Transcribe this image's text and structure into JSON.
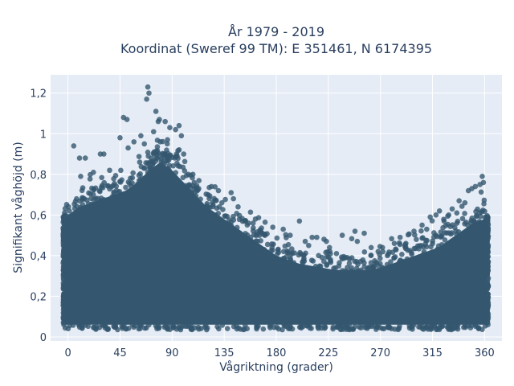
{
  "chart_data": {
    "type": "scatter",
    "title_lines": [
      "År 1979 - 2019",
      "Koordinat (Sweref 99 TM): E 351461, N 6174395"
    ],
    "xlabel": "Vågriktning (grader)",
    "ylabel": "Signifikant våghöjd (m)",
    "xlim": [
      -15,
      375
    ],
    "ylim": [
      -0.02,
      1.29
    ],
    "x_ticks": [
      0,
      45,
      90,
      135,
      180,
      225,
      270,
      315,
      360
    ],
    "x_tick_labels": [
      "0",
      "45",
      "90",
      "135",
      "180",
      "225",
      "270",
      "315",
      "360"
    ],
    "y_ticks": [
      0,
      0.2,
      0.4,
      0.6,
      0.8,
      1.0,
      1.2
    ],
    "y_tick_labels": [
      "0",
      "0,2",
      "0,4",
      "0,6",
      "0,8",
      "1",
      "1,2"
    ],
    "grid": true,
    "background": "#e5ecf6",
    "marker_color": "#34576f",
    "dense_band": {
      "x_range": [
        -3,
        362
      ],
      "y_floor": 0.06,
      "upper_envelope": [
        [
          -3,
          0.56
        ],
        [
          0,
          0.6
        ],
        [
          10,
          0.64
        ],
        [
          20,
          0.66
        ],
        [
          30,
          0.68
        ],
        [
          40,
          0.7
        ],
        [
          50,
          0.72
        ],
        [
          60,
          0.76
        ],
        [
          70,
          0.82
        ],
        [
          80,
          0.86
        ],
        [
          90,
          0.82
        ],
        [
          100,
          0.76
        ],
        [
          110,
          0.7
        ],
        [
          120,
          0.64
        ],
        [
          130,
          0.6
        ],
        [
          140,
          0.56
        ],
        [
          150,
          0.52
        ],
        [
          160,
          0.48
        ],
        [
          170,
          0.44
        ],
        [
          180,
          0.4
        ],
        [
          190,
          0.38
        ],
        [
          200,
          0.36
        ],
        [
          210,
          0.35
        ],
        [
          220,
          0.34
        ],
        [
          230,
          0.33
        ],
        [
          240,
          0.33
        ],
        [
          250,
          0.33
        ],
        [
          260,
          0.33
        ],
        [
          270,
          0.34
        ],
        [
          280,
          0.36
        ],
        [
          290,
          0.38
        ],
        [
          300,
          0.4
        ],
        [
          310,
          0.42
        ],
        [
          320,
          0.44
        ],
        [
          330,
          0.48
        ],
        [
          340,
          0.52
        ],
        [
          350,
          0.56
        ],
        [
          360,
          0.58
        ],
        [
          362,
          0.56
        ]
      ]
    },
    "outliers": [
      {
        "x": 69,
        "y": 1.23
      },
      {
        "x": 70,
        "y": 1.2
      },
      {
        "x": 68,
        "y": 1.17
      },
      {
        "x": 76,
        "y": 1.11
      },
      {
        "x": 48,
        "y": 1.08
      },
      {
        "x": 51,
        "y": 1.07
      },
      {
        "x": 79,
        "y": 1.07
      },
      {
        "x": 78,
        "y": 1.06
      },
      {
        "x": 84,
        "y": 1.06
      },
      {
        "x": 96,
        "y": 1.04
      },
      {
        "x": 93,
        "y": 1.02
      },
      {
        "x": 88,
        "y": 1.03
      },
      {
        "x": 74,
        "y": 1.01
      },
      {
        "x": 98,
        "y": 0.99
      },
      {
        "x": 63,
        "y": 0.99
      },
      {
        "x": 45,
        "y": 0.98
      },
      {
        "x": 86,
        "y": 0.97
      },
      {
        "x": 57,
        "y": 0.96
      },
      {
        "x": 66,
        "y": 0.95
      },
      {
        "x": 5,
        "y": 0.94
      },
      {
        "x": 52,
        "y": 0.93
      },
      {
        "x": 28,
        "y": 0.9
      },
      {
        "x": 31,
        "y": 0.9
      },
      {
        "x": 10,
        "y": 0.88
      },
      {
        "x": 15,
        "y": 0.88
      },
      {
        "x": 104,
        "y": 0.8
      },
      {
        "x": 108,
        "y": 0.8
      },
      {
        "x": 113,
        "y": 0.73
      },
      {
        "x": 121,
        "y": 0.7
      },
      {
        "x": 130,
        "y": 0.72
      },
      {
        "x": 141,
        "y": 0.71
      },
      {
        "x": 143,
        "y": 0.68
      },
      {
        "x": 133,
        "y": 0.66
      },
      {
        "x": 156,
        "y": 0.56
      },
      {
        "x": 160,
        "y": 0.56
      },
      {
        "x": 147,
        "y": 0.64
      },
      {
        "x": 177,
        "y": 0.54
      },
      {
        "x": 186,
        "y": 0.53
      },
      {
        "x": 200,
        "y": 0.57
      },
      {
        "x": 192,
        "y": 0.5
      },
      {
        "x": 211,
        "y": 0.49
      },
      {
        "x": 215,
        "y": 0.49
      },
      {
        "x": 205,
        "y": 0.47
      },
      {
        "x": 208,
        "y": 0.45
      },
      {
        "x": 226,
        "y": 0.44
      },
      {
        "x": 237,
        "y": 0.5
      },
      {
        "x": 248,
        "y": 0.52
      },
      {
        "x": 256,
        "y": 0.51
      },
      {
        "x": 250,
        "y": 0.47
      },
      {
        "x": 262,
        "y": 0.44
      },
      {
        "x": 268,
        "y": 0.42
      },
      {
        "x": 282,
        "y": 0.46
      },
      {
        "x": 287,
        "y": 0.49
      },
      {
        "x": 292,
        "y": 0.46
      },
      {
        "x": 299,
        "y": 0.52
      },
      {
        "x": 306,
        "y": 0.55
      },
      {
        "x": 310,
        "y": 0.53
      },
      {
        "x": 313,
        "y": 0.59
      },
      {
        "x": 318,
        "y": 0.6
      },
      {
        "x": 321,
        "y": 0.62
      },
      {
        "x": 329,
        "y": 0.6
      },
      {
        "x": 332,
        "y": 0.63
      },
      {
        "x": 338,
        "y": 0.67
      },
      {
        "x": 343,
        "y": 0.66
      },
      {
        "x": 346,
        "y": 0.72
      },
      {
        "x": 349,
        "y": 0.73
      },
      {
        "x": 352,
        "y": 0.74
      },
      {
        "x": 356,
        "y": 0.75
      },
      {
        "x": 358,
        "y": 0.79
      },
      {
        "x": 359,
        "y": 0.76
      },
      {
        "x": 11,
        "y": 0.79
      },
      {
        "x": 22,
        "y": 0.81
      },
      {
        "x": 36,
        "y": 0.82
      },
      {
        "x": 100,
        "y": 0.9
      },
      {
        "x": 124,
        "y": 0.74
      },
      {
        "x": 166,
        "y": 0.52
      },
      {
        "x": 232,
        "y": 0.41
      },
      {
        "x": 276,
        "y": 0.4
      },
      {
        "x": 301,
        "y": 0.48
      },
      {
        "x": 325,
        "y": 0.57
      },
      {
        "x": 336,
        "y": 0.61
      }
    ]
  }
}
